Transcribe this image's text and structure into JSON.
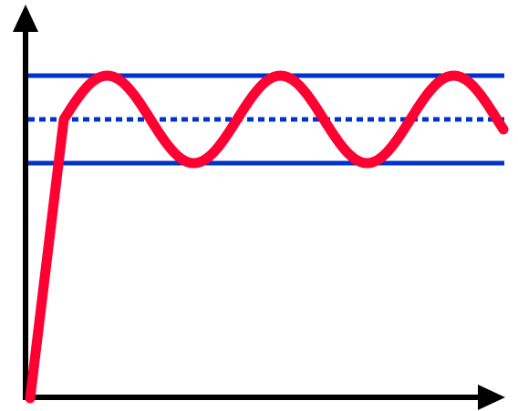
{
  "diagram": {
    "description_type": "oscillation-around-setpoint",
    "colors": {
      "axes": "#000000",
      "bounds": "#0033cc",
      "setpoint": "#0033cc",
      "signal": "#ff0033",
      "background": "#ffffff"
    },
    "elements": {
      "axes": "x-and-y-axes-with-arrowheads",
      "upper_bound": "solid-line",
      "lower_bound": "solid-line",
      "setpoint": "dotted-line",
      "signal": "linear-rise-then-sinusoidal-oscillation"
    },
    "signal_model": {
      "rise_from": 0,
      "settles_to": "setpoint",
      "amplitude": "half-band",
      "cycles_visible": 2.75
    }
  }
}
